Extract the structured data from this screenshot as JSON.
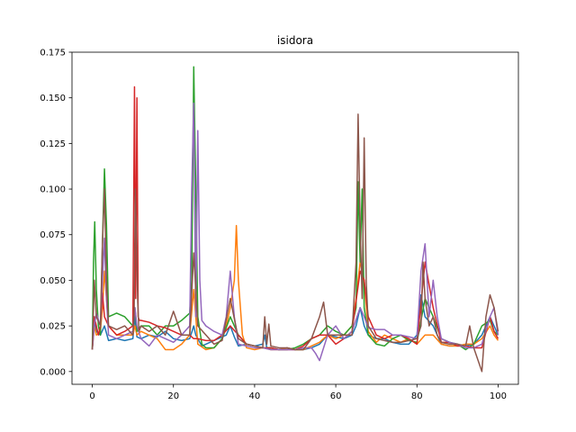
{
  "chart_data": {
    "type": "line",
    "title": "isidora",
    "xlabel": "",
    "ylabel": "",
    "xlim": [
      -5,
      105
    ],
    "ylim": [
      -0.007,
      0.175
    ],
    "xticks": [
      0,
      20,
      40,
      60,
      80,
      100
    ],
    "yticks": [
      0.0,
      0.025,
      0.05,
      0.075,
      0.1,
      0.125,
      0.15,
      0.175
    ],
    "ytick_labels": [
      "0.000",
      "0.025",
      "0.050",
      "0.075",
      "0.100",
      "0.125",
      "0.150",
      "0.175"
    ],
    "grid": false,
    "legend": "none",
    "series": [
      {
        "color": "#1f77b4",
        "x": [
          0,
          0.5,
          1,
          2,
          3,
          4,
          6,
          8,
          10,
          10.5,
          11,
          12,
          14,
          16,
          18,
          20,
          22,
          24,
          25,
          25.5,
          26,
          27,
          30,
          33,
          34,
          35,
          36,
          38,
          40,
          42,
          42.5,
          43,
          44,
          46,
          48,
          50,
          52,
          54,
          56,
          58,
          60,
          62,
          64,
          65,
          66,
          67,
          68,
          70,
          72,
          74,
          76,
          78,
          80,
          81,
          82,
          84,
          86,
          88,
          90,
          92,
          94,
          96,
          98,
          99,
          100
        ],
        "y": [
          0.012,
          0.03,
          0.022,
          0.02,
          0.025,
          0.017,
          0.018,
          0.017,
          0.018,
          0.03,
          0.019,
          0.018,
          0.02,
          0.019,
          0.022,
          0.018,
          0.017,
          0.018,
          0.025,
          0.02,
          0.018,
          0.014,
          0.017,
          0.02,
          0.025,
          0.019,
          0.014,
          0.015,
          0.014,
          0.015,
          0.02,
          0.013,
          0.013,
          0.012,
          0.013,
          0.012,
          0.012,
          0.013,
          0.015,
          0.02,
          0.019,
          0.018,
          0.02,
          0.025,
          0.035,
          0.025,
          0.02,
          0.018,
          0.018,
          0.016,
          0.015,
          0.015,
          0.02,
          0.042,
          0.03,
          0.025,
          0.015,
          0.014,
          0.014,
          0.014,
          0.015,
          0.02,
          0.03,
          0.025,
          0.02
        ]
      },
      {
        "color": "#ff7f0e",
        "x": [
          0,
          0.5,
          1,
          2,
          2.5,
          3,
          4,
          6,
          8,
          10,
          10.5,
          11,
          12,
          14,
          16,
          18,
          20,
          22,
          24,
          25,
          25.5,
          26,
          28,
          30,
          32,
          33,
          34,
          35,
          35.5,
          36,
          37,
          38,
          40,
          42,
          44,
          46,
          48,
          50,
          52,
          54,
          56,
          58,
          60,
          62,
          64,
          65,
          66,
          66.5,
          67,
          68,
          70,
          72,
          74,
          76,
          78,
          80,
          82,
          84,
          86,
          88,
          90,
          92,
          94,
          96,
          98,
          99,
          100
        ],
        "y": [
          0.012,
          0.025,
          0.02,
          0.022,
          0.035,
          0.055,
          0.025,
          0.02,
          0.02,
          0.02,
          0.025,
          0.02,
          0.022,
          0.02,
          0.018,
          0.012,
          0.012,
          0.015,
          0.02,
          0.045,
          0.03,
          0.015,
          0.012,
          0.013,
          0.018,
          0.025,
          0.035,
          0.05,
          0.08,
          0.05,
          0.02,
          0.013,
          0.012,
          0.013,
          0.012,
          0.012,
          0.013,
          0.012,
          0.012,
          0.014,
          0.016,
          0.02,
          0.018,
          0.02,
          0.025,
          0.04,
          0.06,
          0.055,
          0.05,
          0.022,
          0.016,
          0.02,
          0.018,
          0.016,
          0.018,
          0.015,
          0.02,
          0.02,
          0.015,
          0.014,
          0.014,
          0.015,
          0.015,
          0.018,
          0.025,
          0.02,
          0.017
        ]
      },
      {
        "color": "#2ca02c",
        "x": [
          0,
          0.3,
          0.6,
          1,
          1.5,
          2,
          2.5,
          3,
          3.5,
          4,
          6,
          8,
          10,
          10.5,
          11,
          12,
          14,
          16,
          18,
          20,
          22,
          24,
          24.5,
          25,
          25.5,
          26,
          27,
          28,
          30,
          32,
          34,
          36,
          38,
          40,
          42,
          44,
          46,
          48,
          50,
          52,
          54,
          56,
          58,
          60,
          62,
          64,
          65,
          65.5,
          66,
          66.5,
          67,
          68,
          70,
          72,
          74,
          76,
          78,
          80,
          82,
          84,
          86,
          88,
          90,
          92,
          94,
          96,
          98,
          99,
          100
        ],
        "y": [
          0.013,
          0.06,
          0.082,
          0.045,
          0.025,
          0.02,
          0.07,
          0.111,
          0.08,
          0.03,
          0.032,
          0.03,
          0.025,
          0.035,
          0.022,
          0.025,
          0.025,
          0.02,
          0.025,
          0.025,
          0.028,
          0.032,
          0.05,
          0.167,
          0.1,
          0.03,
          0.015,
          0.013,
          0.013,
          0.018,
          0.03,
          0.02,
          0.015,
          0.014,
          0.013,
          0.013,
          0.012,
          0.012,
          0.013,
          0.015,
          0.018,
          0.02,
          0.025,
          0.022,
          0.02,
          0.025,
          0.035,
          0.104,
          0.06,
          0.1,
          0.035,
          0.02,
          0.015,
          0.014,
          0.018,
          0.02,
          0.017,
          0.016,
          0.04,
          0.03,
          0.018,
          0.016,
          0.015,
          0.012,
          0.015,
          0.025,
          0.028,
          0.022,
          0.02
        ]
      },
      {
        "color": "#d62728",
        "x": [
          0,
          0.5,
          1,
          1.5,
          2,
          2.5,
          3,
          4,
          6,
          8,
          10,
          10.4,
          10.7,
          11,
          11.3,
          11.6,
          12,
          14,
          16,
          18,
          20,
          22,
          24,
          25,
          26,
          28,
          30,
          32,
          34,
          36,
          38,
          40,
          42,
          44,
          46,
          48,
          50,
          52,
          54,
          56,
          58,
          60,
          62,
          64,
          66,
          67,
          68,
          70,
          72,
          74,
          76,
          78,
          80,
          82,
          84,
          86,
          88,
          90,
          92,
          94,
          96,
          98,
          99,
          100
        ],
        "y": [
          0.012,
          0.03,
          0.025,
          0.02,
          0.025,
          0.043,
          0.03,
          0.025,
          0.02,
          0.022,
          0.025,
          0.156,
          0.04,
          0.15,
          0.03,
          0.028,
          0.028,
          0.027,
          0.025,
          0.024,
          0.022,
          0.02,
          0.02,
          0.018,
          0.018,
          0.017,
          0.017,
          0.02,
          0.025,
          0.02,
          0.015,
          0.014,
          0.013,
          0.013,
          0.012,
          0.012,
          0.012,
          0.014,
          0.018,
          0.02,
          0.02,
          0.015,
          0.018,
          0.022,
          0.055,
          0.05,
          0.03,
          0.02,
          0.018,
          0.02,
          0.02,
          0.018,
          0.015,
          0.06,
          0.035,
          0.016,
          0.016,
          0.014,
          0.014,
          0.013,
          0.013,
          0.03,
          0.022,
          0.018
        ]
      },
      {
        "color": "#9467bd",
        "x": [
          0,
          0.5,
          1,
          2,
          2.5,
          3,
          3.5,
          4,
          6,
          8,
          10,
          10.5,
          11,
          12,
          14,
          16,
          18,
          20,
          22,
          24,
          24.5,
          25,
          25.5,
          26,
          26.5,
          27,
          28,
          30,
          32,
          33,
          34,
          35,
          36,
          38,
          40,
          42,
          44,
          46,
          48,
          50,
          52,
          54,
          55,
          56,
          58,
          60,
          62,
          64,
          66,
          67,
          68,
          70,
          72,
          74,
          76,
          78,
          80,
          81,
          82,
          83,
          84,
          85,
          86,
          88,
          90,
          92,
          94,
          96,
          98,
          99,
          100
        ],
        "y": [
          0.012,
          0.025,
          0.032,
          0.025,
          0.05,
          0.073,
          0.04,
          0.02,
          0.018,
          0.02,
          0.022,
          0.035,
          0.025,
          0.018,
          0.014,
          0.02,
          0.018,
          0.016,
          0.02,
          0.025,
          0.1,
          0.147,
          0.03,
          0.132,
          0.05,
          0.028,
          0.025,
          0.022,
          0.02,
          0.03,
          0.055,
          0.03,
          0.015,
          0.014,
          0.013,
          0.013,
          0.012,
          0.012,
          0.012,
          0.012,
          0.013,
          0.013,
          0.01,
          0.006,
          0.02,
          0.025,
          0.018,
          0.022,
          0.035,
          0.03,
          0.024,
          0.023,
          0.023,
          0.02,
          0.02,
          0.019,
          0.018,
          0.055,
          0.07,
          0.03,
          0.05,
          0.03,
          0.018,
          0.016,
          0.015,
          0.013,
          0.013,
          0.015,
          0.03,
          0.035,
          0.02
        ]
      },
      {
        "color": "#8c564b",
        "x": [
          0,
          0.5,
          1,
          2,
          2.5,
          3,
          3.5,
          4,
          6,
          8,
          10,
          10.3,
          10.6,
          10.9,
          11.2,
          11.5,
          12,
          14,
          16,
          18,
          20,
          22,
          24,
          25,
          26,
          28,
          30,
          32,
          34,
          36,
          38,
          40,
          42,
          42.5,
          43,
          43.5,
          44,
          46,
          48,
          50,
          52,
          54,
          56,
          57,
          58,
          60,
          62,
          64,
          65,
          65.5,
          66,
          66.5,
          67,
          67.5,
          68,
          70,
          72,
          74,
          76,
          78,
          80,
          81,
          81.5,
          82,
          83,
          84,
          85,
          86,
          88,
          90,
          92,
          93,
          94,
          96,
          97,
          98,
          99,
          100
        ],
        "y": [
          0.012,
          0.05,
          0.03,
          0.025,
          0.07,
          0.1,
          0.05,
          0.025,
          0.023,
          0.025,
          0.02,
          0.03,
          0.1,
          0.07,
          0.038,
          0.022,
          0.025,
          0.022,
          0.025,
          0.02,
          0.033,
          0.02,
          0.02,
          0.065,
          0.025,
          0.02,
          0.015,
          0.017,
          0.04,
          0.018,
          0.015,
          0.014,
          0.013,
          0.03,
          0.015,
          0.026,
          0.014,
          0.013,
          0.013,
          0.012,
          0.012,
          0.018,
          0.03,
          0.038,
          0.02,
          0.02,
          0.02,
          0.02,
          0.06,
          0.141,
          0.08,
          0.04,
          0.128,
          0.05,
          0.025,
          0.018,
          0.017,
          0.016,
          0.016,
          0.017,
          0.018,
          0.025,
          0.06,
          0.04,
          0.025,
          0.03,
          0.02,
          0.016,
          0.015,
          0.015,
          0.014,
          0.025,
          0.013,
          0.0,
          0.03,
          0.042,
          0.035,
          0.022
        ]
      }
    ]
  }
}
